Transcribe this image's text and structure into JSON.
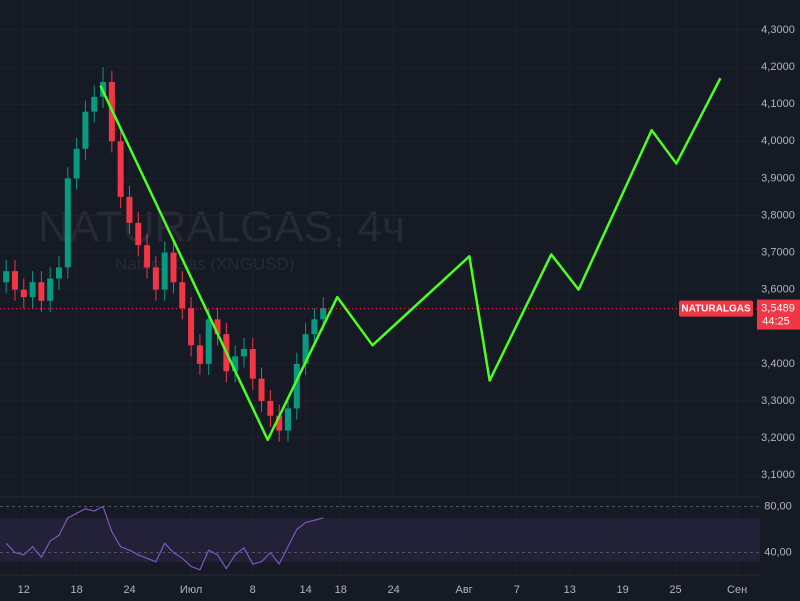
{
  "chart_data": [
    {
      "type": "candlestick",
      "watermark": "NATURALGAS, 4ч",
      "watermark_subtitle": "Natural Gas (XNGUSD)",
      "x": [
        10,
        11,
        12,
        13,
        14,
        15,
        16,
        17,
        18,
        19,
        20,
        21,
        22,
        23,
        24,
        25,
        26,
        27,
        28,
        29,
        30,
        31,
        32,
        33,
        34,
        35,
        36,
        37,
        38,
        39,
        40,
        41,
        42,
        43,
        44,
        45,
        46
      ],
      "open": [
        3.62,
        3.65,
        3.6,
        3.58,
        3.62,
        3.57,
        3.63,
        3.66,
        3.9,
        3.98,
        4.08,
        4.12,
        4.16,
        4.0,
        3.85,
        3.78,
        3.72,
        3.66,
        3.6,
        3.7,
        3.62,
        3.55,
        3.45,
        3.4,
        3.52,
        3.48,
        3.38,
        3.42,
        3.44,
        3.36,
        3.3,
        3.26,
        3.22,
        3.28,
        3.4,
        3.48,
        3.52
      ],
      "high": [
        3.68,
        3.68,
        3.63,
        3.65,
        3.65,
        3.66,
        3.69,
        3.93,
        4.01,
        4.11,
        4.15,
        4.2,
        4.19,
        4.03,
        3.88,
        3.81,
        3.75,
        3.69,
        3.73,
        3.73,
        3.65,
        3.58,
        3.48,
        3.55,
        3.55,
        3.51,
        3.45,
        3.47,
        3.47,
        3.39,
        3.33,
        3.29,
        3.31,
        3.43,
        3.51,
        3.55,
        3.58
      ],
      "low": [
        3.59,
        3.57,
        3.55,
        3.55,
        3.54,
        3.54,
        3.6,
        3.63,
        3.87,
        3.95,
        4.05,
        4.09,
        3.97,
        3.82,
        3.75,
        3.69,
        3.63,
        3.57,
        3.57,
        3.59,
        3.52,
        3.42,
        3.37,
        3.37,
        3.45,
        3.35,
        3.35,
        3.39,
        3.33,
        3.27,
        3.23,
        3.19,
        3.19,
        3.25,
        3.37,
        3.45,
        3.49
      ],
      "close": [
        3.65,
        3.6,
        3.58,
        3.62,
        3.57,
        3.63,
        3.66,
        3.9,
        3.98,
        4.08,
        4.12,
        4.16,
        4.0,
        3.85,
        3.78,
        3.72,
        3.66,
        3.6,
        3.7,
        3.62,
        3.55,
        3.45,
        3.4,
        3.52,
        3.48,
        3.38,
        3.42,
        3.44,
        3.36,
        3.3,
        3.26,
        3.22,
        3.28,
        3.4,
        3.48,
        3.52,
        3.55
      ],
      "up_color": "#089981",
      "down_color": "#f23645",
      "xlim": [
        9.3,
        95.6
      ],
      "xticks": [
        {
          "value": 12,
          "label": "12"
        },
        {
          "value": 18,
          "label": "18"
        },
        {
          "value": 24,
          "label": "24"
        },
        {
          "value": 31,
          "label": "Июл"
        },
        {
          "value": 38,
          "label": "8"
        },
        {
          "value": 44,
          "label": "14"
        },
        {
          "value": 48,
          "label": "18"
        },
        {
          "value": 54,
          "label": "24"
        },
        {
          "value": 62,
          "label": "Авг"
        },
        {
          "value": 68,
          "label": "7"
        },
        {
          "value": 74,
          "label": "13"
        },
        {
          "value": 80,
          "label": "19"
        },
        {
          "value": 86,
          "label": "25"
        },
        {
          "value": 93,
          "label": "Сен"
        }
      ],
      "ylim": [
        3.041,
        4.381
      ],
      "yticks": [
        {
          "value": 4.3,
          "label": "4,3000"
        },
        {
          "value": 4.2,
          "label": "4,2000"
        },
        {
          "value": 4.1,
          "label": "4,1000"
        },
        {
          "value": 4.0,
          "label": "4,0000"
        },
        {
          "value": 3.9,
          "label": "3,9000"
        },
        {
          "value": 3.8,
          "label": "3,8000"
        },
        {
          "value": 3.7,
          "label": "3,7000"
        },
        {
          "value": 3.6,
          "label": "3,6000"
        },
        {
          "value": 3.4,
          "label": "3,4000"
        },
        {
          "value": 3.3,
          "label": "3,3000"
        },
        {
          "value": 3.2,
          "label": "3,2000"
        },
        {
          "value": 3.1,
          "label": "3,1000"
        }
      ],
      "last_price": {
        "symbol": "NATURALGAS",
        "value": 3.5489,
        "label": "3,5489",
        "countdown": "44:25",
        "color": "#f23645"
      },
      "projection": {
        "color": "#4cff1f",
        "x": [
          20.7,
          39.7,
          47.6,
          51.6,
          62.6,
          64.9,
          71.9,
          75.0,
          83.3,
          86.1,
          91.1
        ],
        "values": [
          4.15,
          3.195,
          3.58,
          3.45,
          3.69,
          3.355,
          3.695,
          3.6,
          4.03,
          3.94,
          4.17
        ]
      }
    },
    {
      "type": "line",
      "values": [
        48,
        40,
        38,
        45,
        36,
        50,
        55,
        70,
        74,
        78,
        76,
        80,
        58,
        45,
        42,
        38,
        35,
        32,
        48,
        40,
        35,
        28,
        25,
        42,
        38,
        26,
        38,
        44,
        30,
        32,
        40,
        30,
        45,
        60,
        66,
        68,
        70
      ],
      "color": "#7e57c2",
      "ylim": [
        20.5,
        85.6
      ],
      "yticks": [
        {
          "value": 80,
          "label": "80,00"
        },
        {
          "value": 40,
          "label": "40,00"
        }
      ]
    }
  ]
}
